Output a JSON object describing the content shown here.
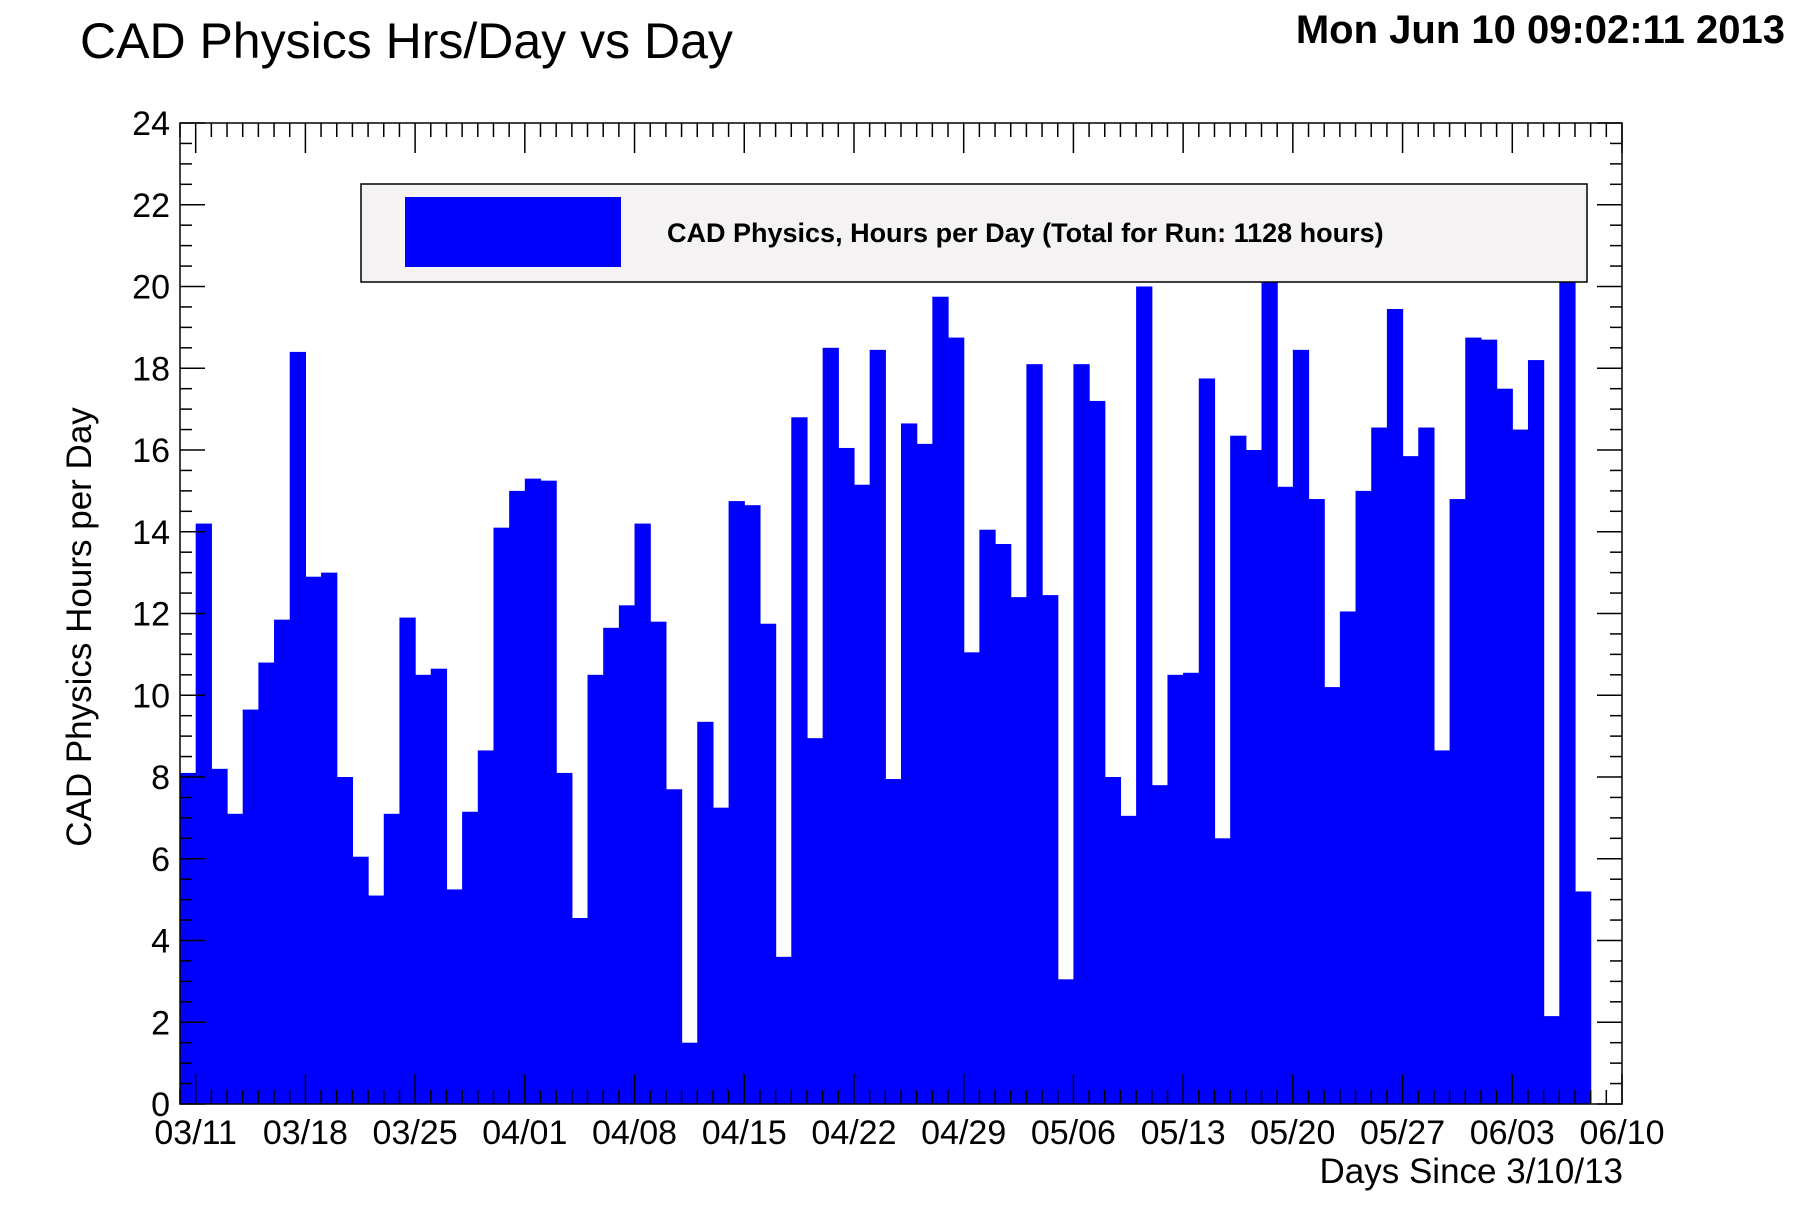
{
  "chart_data": {
    "type": "bar",
    "title": "CAD Physics Hrs/Day vs Day",
    "timestamp": "Mon Jun 10 09:02:11 2013",
    "xlabel": "Days Since 3/10/13",
    "ylabel": "CAD Physics Hours per Day",
    "xlim": [
      0,
      92
    ],
    "ylim": [
      0,
      24
    ],
    "x_tick_values": [
      1,
      8,
      15,
      22,
      29,
      36,
      43,
      50,
      57,
      64,
      71,
      78,
      85,
      92
    ],
    "x_tick_labels": [
      "03/11",
      "03/18",
      "03/25",
      "04/01",
      "04/08",
      "04/15",
      "04/22",
      "04/29",
      "05/06",
      "05/13",
      "05/20",
      "05/27",
      "06/03",
      "06/10"
    ],
    "y_tick_labels": [
      "0",
      "2",
      "4",
      "6",
      "8",
      "10",
      "12",
      "14",
      "16",
      "18",
      "20",
      "22",
      "24"
    ],
    "color": "#0000ff",
    "legend": {
      "label": "CAD Physics, Hours per Day (Total for Run: 1128 hours)",
      "placement": "top-center"
    },
    "values": [
      8.1,
      14.2,
      8.2,
      7.1,
      9.65,
      10.8,
      11.85,
      18.4,
      12.9,
      13.0,
      8.0,
      6.05,
      5.1,
      7.1,
      11.9,
      10.5,
      10.65,
      5.25,
      7.15,
      8.65,
      14.1,
      15.0,
      15.3,
      15.25,
      8.1,
      4.55,
      10.5,
      11.65,
      12.2,
      14.2,
      11.8,
      7.7,
      1.5,
      9.35,
      7.25,
      14.75,
      14.65,
      11.75,
      3.6,
      16.8,
      8.95,
      18.5,
      16.05,
      15.15,
      18.45,
      7.95,
      16.65,
      16.15,
      19.75,
      18.75,
      11.05,
      14.05,
      13.7,
      12.4,
      18.1,
      12.45,
      3.05,
      18.1,
      17.2,
      8.0,
      7.05,
      20.0,
      7.8,
      10.5,
      10.55,
      17.75,
      6.5,
      16.35,
      16.0,
      20.5,
      15.1,
      18.45,
      14.8,
      10.2,
      12.05,
      15.0,
      16.55,
      19.45,
      15.85,
      16.55,
      8.65,
      14.8,
      18.75,
      18.7,
      17.5,
      16.5,
      18.2,
      2.15,
      21.0,
      5.2
    ]
  }
}
